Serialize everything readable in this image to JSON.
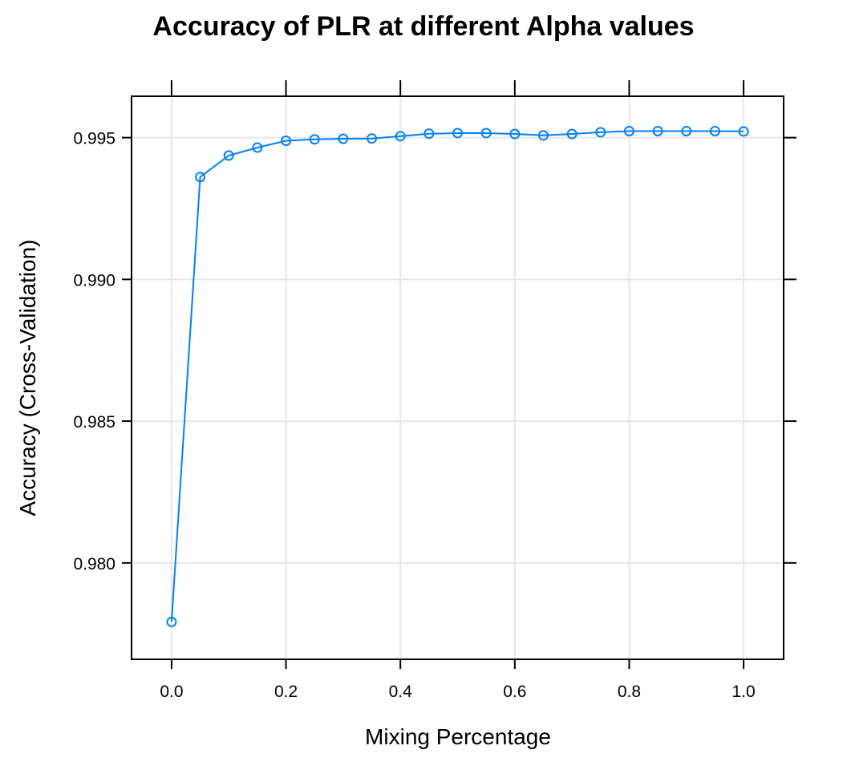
{
  "chart_data": {
    "type": "line",
    "title": "Accuracy of PLR at different Alpha values",
    "xlabel": "Mixing Percentage",
    "ylabel": "Accuracy (Cross-Validation)",
    "xlim": [
      -0.07,
      1.07
    ],
    "ylim": [
      0.9766,
      0.99646
    ],
    "x_ticks": [
      0.0,
      0.2,
      0.4,
      0.6,
      0.8,
      1.0
    ],
    "x_tick_labels": [
      "0.0",
      "0.2",
      "0.4",
      "0.6",
      "0.8",
      "1.0"
    ],
    "y_ticks": [
      0.98,
      0.985,
      0.99,
      0.995
    ],
    "y_tick_labels": [
      "0.980",
      "0.985",
      "0.990",
      "0.995"
    ],
    "grid": true,
    "line_color": "#0080ff",
    "series": [
      {
        "x": [
          0.0,
          0.05,
          0.1,
          0.15,
          0.2,
          0.25,
          0.3,
          0.35,
          0.4,
          0.45,
          0.5,
          0.55,
          0.6,
          0.65,
          0.7,
          0.75,
          0.8,
          0.85,
          0.9,
          0.95,
          1.0
        ],
        "values": [
          0.97792,
          0.99361,
          0.99437,
          0.99465,
          0.99489,
          0.99494,
          0.99496,
          0.99497,
          0.99505,
          0.99514,
          0.99516,
          0.99516,
          0.99513,
          0.99508,
          0.99513,
          0.99519,
          0.99523,
          0.99523,
          0.99523,
          0.99523,
          0.99522
        ]
      }
    ]
  }
}
